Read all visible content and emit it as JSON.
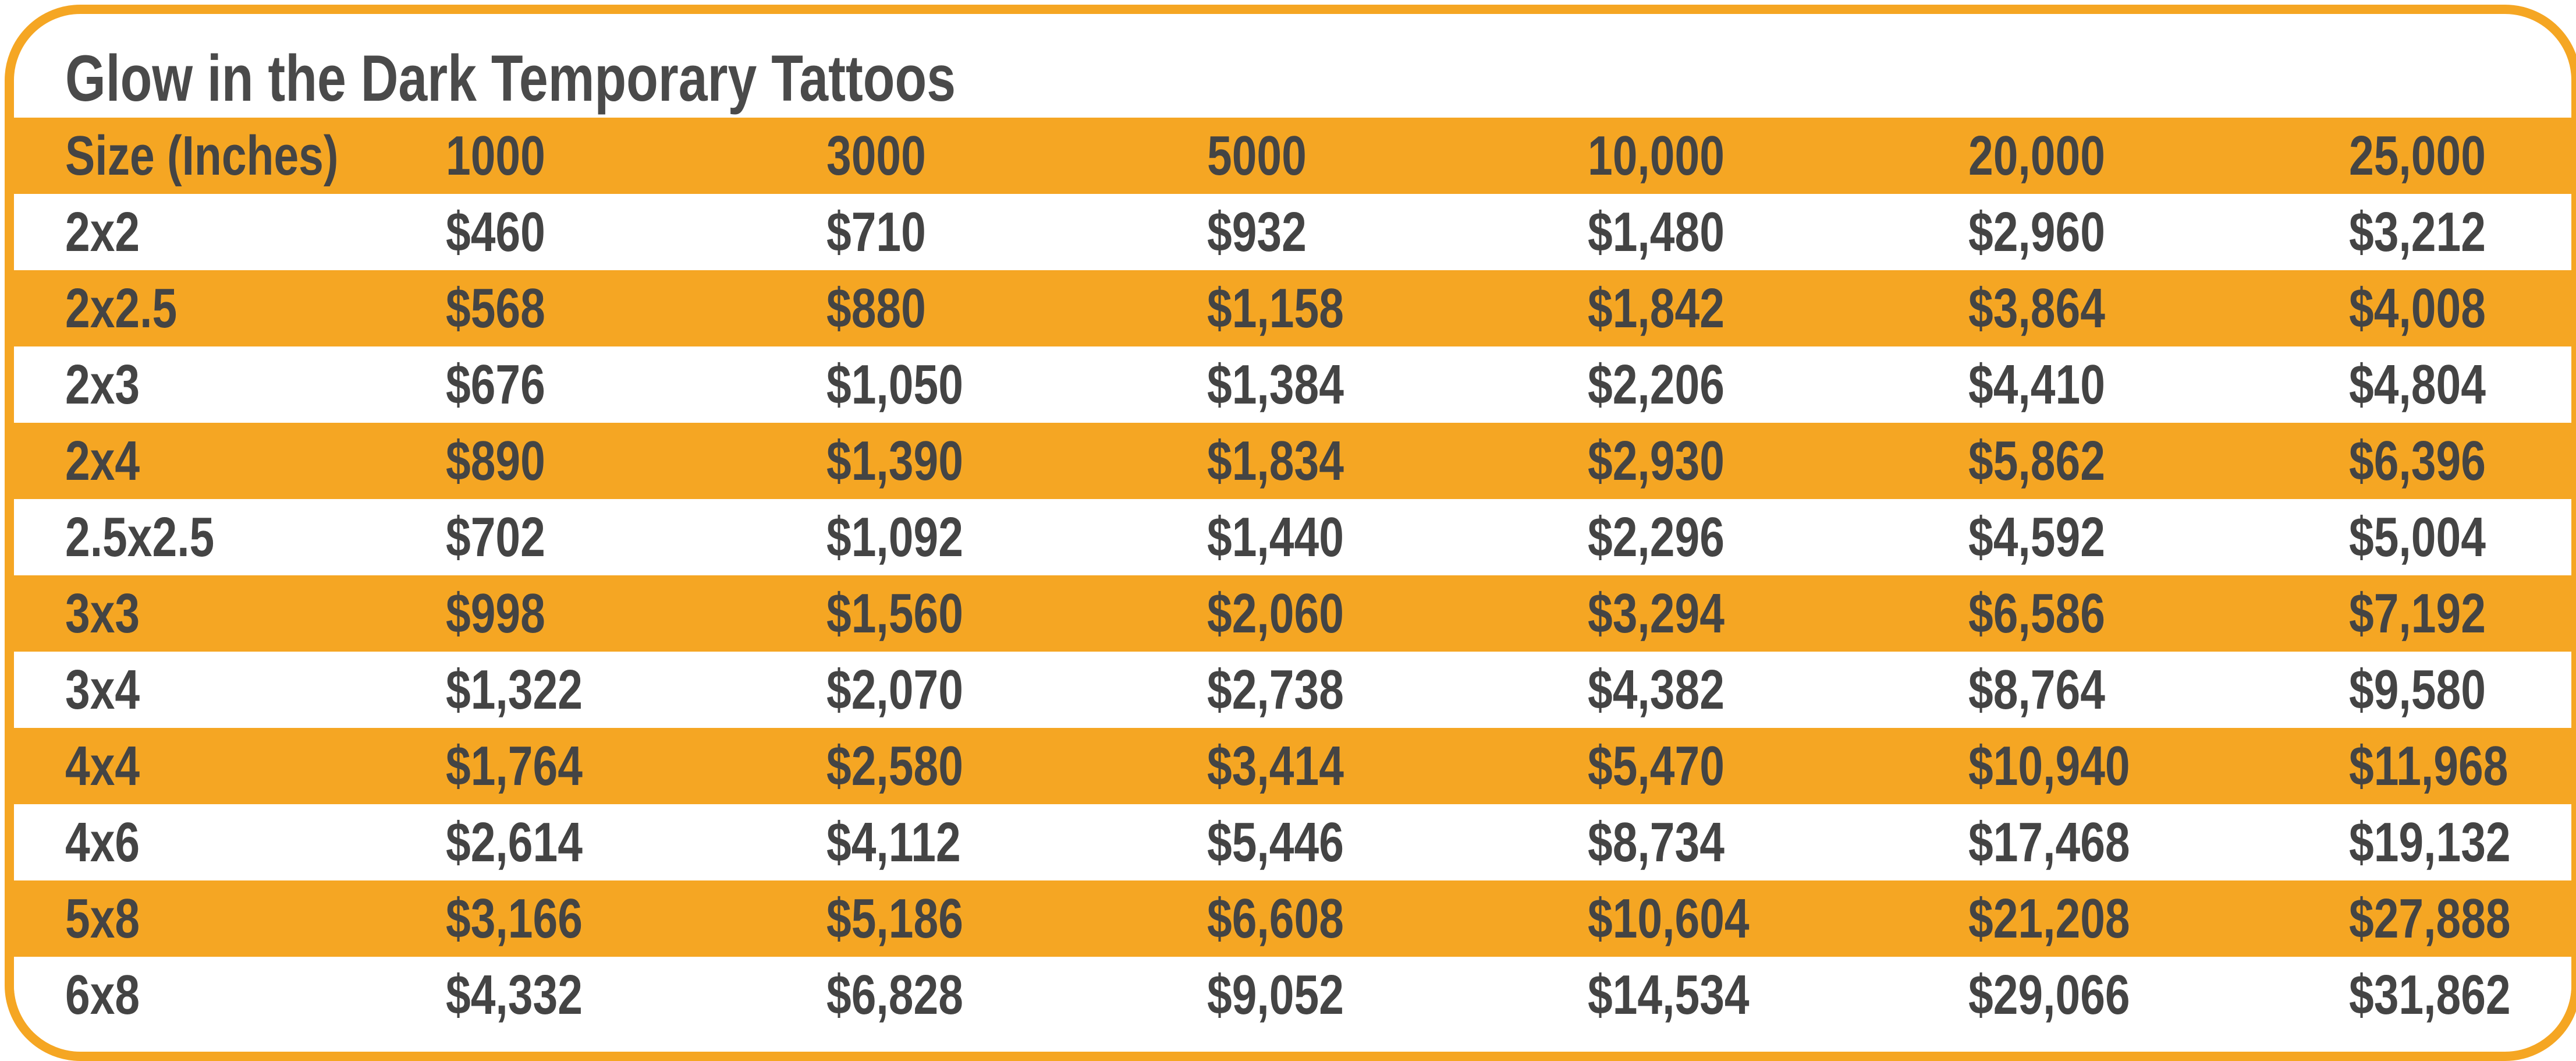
{
  "chart_data": {
    "type": "table",
    "title": "Glow in the Dark Temporary Tattoos",
    "colors": {
      "accent": "#F5A623",
      "text": "#444444",
      "background": "#FFFFFF"
    },
    "columns": [
      "Size (Inches)",
      "1000",
      "3000",
      "5000",
      "10,000",
      "20,000",
      "25,000"
    ],
    "rows": [
      [
        "2x2",
        "$460",
        "$710",
        "$932",
        "$1,480",
        "$2,960",
        "$3,212"
      ],
      [
        "2x2.5",
        "$568",
        "$880",
        "$1,158",
        "$1,842",
        "$3,864",
        "$4,008"
      ],
      [
        "2x3",
        "$676",
        "$1,050",
        "$1,384",
        "$2,206",
        "$4,410",
        "$4,804"
      ],
      [
        "2x4",
        "$890",
        "$1,390",
        "$1,834",
        "$2,930",
        "$5,862",
        "$6,396"
      ],
      [
        "2.5x2.5",
        "$702",
        "$1,092",
        "$1,440",
        "$2,296",
        "$4,592",
        "$5,004"
      ],
      [
        "3x3",
        "$998",
        "$1,560",
        "$2,060",
        "$3,294",
        "$6,586",
        "$7,192"
      ],
      [
        "3x4",
        "$1,322",
        "$2,070",
        "$2,738",
        "$4,382",
        "$8,764",
        "$9,580"
      ],
      [
        "4x4",
        "$1,764",
        "$2,580",
        "$3,414",
        "$5,470",
        "$10,940",
        "$11,968"
      ],
      [
        "4x6",
        "$2,614",
        "$4,112",
        "$5,446",
        "$8,734",
        "$17,468",
        "$19,132"
      ],
      [
        "5x8",
        "$3,166",
        "$5,186",
        "$6,608",
        "$10,604",
        "$21,208",
        "$27,888"
      ],
      [
        "6x8",
        "$4,332",
        "$6,828",
        "$9,052",
        "$14,534",
        "$29,066",
        "$31,862"
      ]
    ]
  }
}
